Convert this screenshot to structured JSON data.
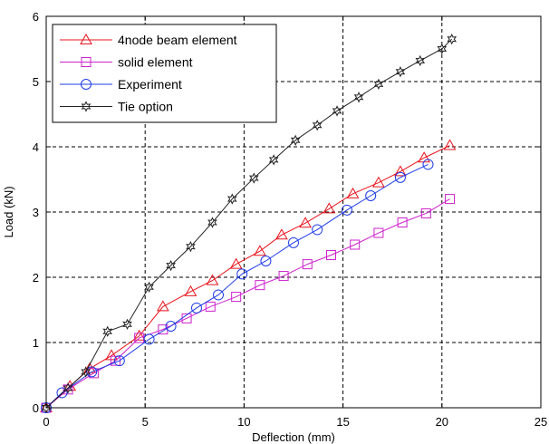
{
  "chart_data": {
    "type": "line",
    "title": "",
    "xlabel": "Deflection (mm)",
    "ylabel": "Load (kN)",
    "xlim": [
      0,
      25
    ],
    "ylim": [
      0,
      6
    ],
    "xticks": [
      "0",
      "5",
      "10",
      "15",
      "20",
      "25"
    ],
    "yticks": [
      "0",
      "1",
      "2",
      "3",
      "4",
      "5",
      "6"
    ],
    "grid": "dashed",
    "legend_position": "top-left",
    "series": [
      {
        "name": "4node beam element",
        "color": "#e8141c",
        "marker": "triangle",
        "x": [
          0,
          1.2,
          2.2,
          3.3,
          4.7,
          5.9,
          7.3,
          8.4,
          9.6,
          10.8,
          11.9,
          13.1,
          14.3,
          15.5,
          16.8,
          17.9,
          19.1,
          20.4
        ],
        "y": [
          0,
          0.33,
          0.6,
          0.8,
          1.1,
          1.55,
          1.78,
          1.95,
          2.2,
          2.4,
          2.65,
          2.83,
          3.05,
          3.28,
          3.45,
          3.62,
          3.83,
          4.02
        ]
      },
      {
        "name": "solid element",
        "color": "#cc22cc",
        "marker": "square",
        "x": [
          0,
          1.1,
          2.4,
          3.5,
          4.7,
          5.9,
          7.1,
          8.3,
          9.6,
          10.8,
          12.0,
          13.2,
          14.4,
          15.6,
          16.8,
          18.0,
          19.2,
          20.4
        ],
        "y": [
          0,
          0.28,
          0.53,
          0.72,
          1.07,
          1.2,
          1.37,
          1.55,
          1.7,
          1.88,
          2.02,
          2.2,
          2.34,
          2.5,
          2.68,
          2.84,
          2.98,
          3.2
        ]
      },
      {
        "name": "Experiment",
        "color": "#1e3ce8",
        "marker": "circle",
        "x": [
          0,
          0.8,
          2.3,
          3.7,
          5.2,
          6.3,
          7.6,
          8.7,
          9.9,
          11.1,
          12.5,
          13.7,
          15.2,
          16.4,
          17.9,
          19.3
        ],
        "y": [
          0,
          0.23,
          0.55,
          0.72,
          1.05,
          1.25,
          1.53,
          1.73,
          2.05,
          2.25,
          2.53,
          2.73,
          3.03,
          3.25,
          3.53,
          3.73
        ]
      },
      {
        "name": "Tie option",
        "color": "#222222",
        "marker": "star",
        "x": [
          0,
          1.1,
          2.0,
          3.1,
          4.1,
          5.2,
          6.3,
          7.3,
          8.4,
          9.4,
          10.5,
          11.5,
          12.6,
          13.7,
          14.7,
          15.8,
          16.8,
          17.9,
          18.9,
          20.0,
          20.5
        ],
        "y": [
          0,
          0.3,
          0.55,
          1.17,
          1.28,
          1.85,
          2.18,
          2.47,
          2.84,
          3.2,
          3.52,
          3.8,
          4.1,
          4.33,
          4.55,
          4.76,
          4.96,
          5.15,
          5.32,
          5.5,
          5.65
        ]
      }
    ]
  }
}
